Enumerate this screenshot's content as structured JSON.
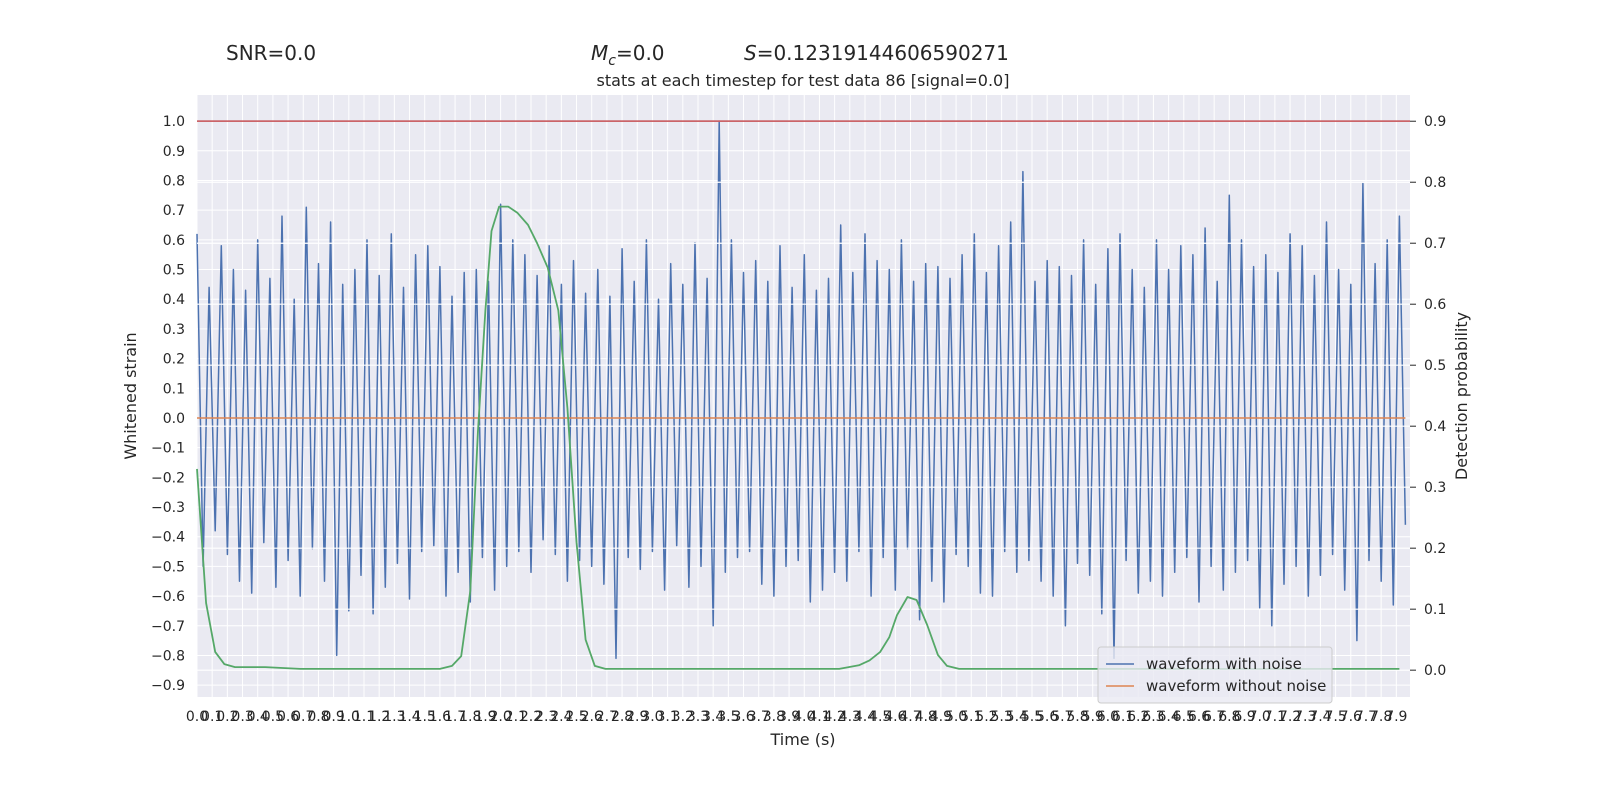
{
  "chart_data": {
    "type": "line",
    "annotations": {
      "snr": "SNR=0.0",
      "mc": {
        "symbol": "M",
        "sub": "c",
        "text": "=0.0"
      },
      "s": {
        "symbol": "S",
        "text": "=0.12319144606590271"
      }
    },
    "title": "stats at each timestep for test data 86 [signal=0.0]",
    "xlabel": "Time (s)",
    "ylabel": "Whitened strain",
    "y2label": "Detection probability",
    "xlim": [
      0,
      7.99
    ],
    "ylim": [
      -0.94,
      1.088
    ],
    "y2lim": [
      -0.044,
      0.943
    ],
    "grid": true,
    "legend": "lower right",
    "hline": {
      "value": 1.0,
      "color": "#c44e52"
    },
    "xticks": [
      {
        "value": 0,
        "label": "0.0"
      },
      0.1,
      0.2,
      0.3,
      0.4,
      0.5,
      0.6,
      0.7,
      0.8,
      0.9,
      {
        "value": 1,
        "label": "1.0"
      },
      1.1,
      1.2,
      1.3,
      1.4,
      1.5,
      1.6,
      1.7,
      1.8,
      1.9,
      {
        "value": 2,
        "label": "2.0"
      },
      2.1,
      2.2,
      2.3,
      2.4,
      2.5,
      2.6,
      2.7,
      2.8,
      2.9,
      {
        "value": 3,
        "label": "3.0"
      },
      3.1,
      3.2,
      3.3,
      3.4,
      3.5,
      3.6,
      3.7,
      3.8,
      3.9,
      {
        "value": 4,
        "label": "4.0"
      },
      4.1,
      4.2,
      4.3,
      4.4,
      4.5,
      4.6,
      4.7,
      4.8,
      4.9,
      {
        "value": 5,
        "label": "5.0"
      },
      5.1,
      5.2,
      5.3,
      5.4,
      5.5,
      5.6,
      5.7,
      5.8,
      5.9,
      {
        "value": 6,
        "label": "6.0"
      },
      6.1,
      6.2,
      6.3,
      6.4,
      6.5,
      6.6,
      6.7,
      6.8,
      6.9,
      {
        "value": 7,
        "label": "7.0"
      },
      7.1,
      7.2,
      7.3,
      7.4,
      7.5,
      7.6,
      7.7,
      7.8,
      7.9
    ],
    "yticks": [
      {
        "value": 1,
        "label": "1.0"
      },
      0.9,
      0.8,
      0.7,
      0.6,
      0.5,
      0.4,
      0.3,
      0.2,
      0.1,
      {
        "value": 0,
        "label": "0.0"
      },
      {
        "value": -0.1,
        "label": "−0.1"
      },
      {
        "value": -0.2,
        "label": "−0.2"
      },
      {
        "value": -0.3,
        "label": "−0.3"
      },
      {
        "value": -0.4,
        "label": "−0.4"
      },
      {
        "value": -0.5,
        "label": "−0.5"
      },
      {
        "value": -0.6,
        "label": "−0.6"
      },
      {
        "value": -0.7,
        "label": "−0.7"
      },
      {
        "value": -0.8,
        "label": "−0.8"
      },
      {
        "value": -0.9,
        "label": "−0.9"
      }
    ],
    "y2ticks": [
      0.9,
      0.8,
      0.7,
      0.6,
      0.5,
      0.4,
      0.3,
      0.2,
      0.1,
      {
        "value": 0,
        "label": "0.0"
      }
    ],
    "series": [
      {
        "name": "waveform with noise",
        "color": "#4c72b0",
        "x": [
          0,
          0.04,
          0.08,
          0.12,
          0.16,
          0.2,
          0.24,
          0.28,
          0.32,
          0.36,
          0.4,
          0.44,
          0.48,
          0.52,
          0.56,
          0.6,
          0.64,
          0.68,
          0.72,
          0.76,
          0.8,
          0.84,
          0.88,
          0.92,
          0.96,
          1,
          1.04,
          1.08,
          1.12,
          1.16,
          1.2,
          1.24,
          1.28,
          1.32,
          1.36,
          1.4,
          1.44,
          1.48,
          1.52,
          1.56,
          1.6,
          1.64,
          1.68,
          1.72,
          1.76,
          1.8,
          1.84,
          1.88,
          1.92,
          1.96,
          2,
          2.04,
          2.08,
          2.12,
          2.16,
          2.2,
          2.24,
          2.28,
          2.32,
          2.36,
          2.4,
          2.44,
          2.48,
          2.52,
          2.56,
          2.6,
          2.64,
          2.68,
          2.72,
          2.76,
          2.8,
          2.84,
          2.88,
          2.92,
          2.96,
          3,
          3.04,
          3.08,
          3.12,
          3.16,
          3.2,
          3.24,
          3.28,
          3.32,
          3.36,
          3.4,
          3.44,
          3.48,
          3.52,
          3.56,
          3.6,
          3.64,
          3.68,
          3.72,
          3.76,
          3.8,
          3.84,
          3.88,
          3.92,
          3.96,
          4,
          4.04,
          4.08,
          4.12,
          4.16,
          4.2,
          4.24,
          4.28,
          4.32,
          4.36,
          4.4,
          4.44,
          4.48,
          4.52,
          4.56,
          4.6,
          4.64,
          4.68,
          4.72,
          4.76,
          4.8,
          4.84,
          4.88,
          4.92,
          4.96,
          5,
          5.04,
          5.08,
          5.12,
          5.16,
          5.2,
          5.24,
          5.28,
          5.32,
          5.36,
          5.4,
          5.44,
          5.48,
          5.52,
          5.56,
          5.6,
          5.64,
          5.68,
          5.72,
          5.76,
          5.8,
          5.84,
          5.88,
          5.92,
          5.96,
          6,
          6.04,
          6.08,
          6.12,
          6.16,
          6.2,
          6.24,
          6.28,
          6.32,
          6.36,
          6.4,
          6.44,
          6.48,
          6.52,
          6.56,
          6.6,
          6.64,
          6.68,
          6.72,
          6.76,
          6.8,
          6.84,
          6.88,
          6.92,
          6.96,
          7,
          7.04,
          7.08,
          7.12,
          7.16,
          7.2,
          7.24,
          7.28,
          7.32,
          7.36,
          7.4,
          7.44,
          7.48,
          7.52,
          7.56,
          7.6,
          7.64,
          7.68,
          7.72,
          7.76,
          7.8,
          7.84,
          7.88,
          7.92,
          7.96
        ],
        "values": [
          0.62,
          -0.5,
          0.44,
          -0.38,
          0.58,
          -0.46,
          0.5,
          -0.55,
          0.43,
          -0.59,
          0.6,
          -0.42,
          0.47,
          -0.57,
          0.68,
          -0.48,
          0.4,
          -0.6,
          0.71,
          -0.44,
          0.52,
          -0.55,
          0.66,
          -0.8,
          0.45,
          -0.65,
          0.5,
          -0.53,
          0.6,
          -0.66,
          0.48,
          -0.57,
          0.62,
          -0.49,
          0.44,
          -0.61,
          0.55,
          -0.45,
          0.58,
          -0.43,
          0.51,
          -0.6,
          0.41,
          -0.52,
          0.49,
          -0.62,
          0.5,
          -0.47,
          0.46,
          -0.58,
          0.72,
          -0.5,
          0.6,
          -0.45,
          0.55,
          -0.52,
          0.48,
          -0.41,
          0.58,
          -0.46,
          0.45,
          -0.55,
          0.53,
          -0.48,
          0.42,
          -0.5,
          0.5,
          -0.56,
          0.41,
          -0.81,
          0.57,
          -0.47,
          0.46,
          -0.51,
          0.6,
          -0.45,
          0.4,
          -0.58,
          0.52,
          -0.43,
          0.45,
          -0.57,
          0.59,
          -0.5,
          0.47,
          -0.7,
          1.0,
          -0.52,
          0.6,
          -0.47,
          0.49,
          -0.45,
          0.53,
          -0.56,
          0.46,
          -0.6,
          0.58,
          -0.5,
          0.44,
          -0.48,
          0.55,
          -0.62,
          0.43,
          -0.58,
          0.47,
          -0.52,
          0.65,
          -0.55,
          0.49,
          -0.45,
          0.62,
          -0.6,
          0.53,
          -0.47,
          0.5,
          -0.58,
          0.6,
          -0.44,
          0.46,
          -0.68,
          0.52,
          -0.55,
          0.51,
          -0.62,
          0.47,
          -0.46,
          0.55,
          -0.5,
          0.62,
          -0.59,
          0.49,
          -0.6,
          0.58,
          -0.45,
          0.66,
          -0.52,
          0.83,
          -0.48,
          0.46,
          -0.55,
          0.53,
          -0.6,
          0.51,
          -0.7,
          0.48,
          -0.49,
          0.6,
          -0.53,
          0.45,
          -0.66,
          0.57,
          -0.81,
          0.62,
          -0.48,
          0.5,
          -0.59,
          0.44,
          -0.55,
          0.6,
          -0.6,
          0.5,
          -0.52,
          0.58,
          -0.47,
          0.55,
          -0.62,
          0.64,
          -0.5,
          0.46,
          -0.58,
          0.75,
          -0.52,
          0.6,
          -0.48,
          0.51,
          -0.64,
          0.55,
          -0.7,
          0.49,
          -0.56,
          0.62,
          -0.5,
          0.58,
          -0.6,
          0.48,
          -0.53,
          0.66,
          -0.46,
          0.5,
          -0.58,
          0.45,
          -0.75,
          0.79,
          -0.48,
          0.52,
          -0.55,
          0.6,
          -0.63,
          0.68,
          -0.36
        ]
      },
      {
        "name": "waveform without noise",
        "color": "#dd8452",
        "x": [
          0,
          7.96
        ],
        "values": [
          0,
          0
        ]
      },
      {
        "color": "#55a868",
        "axis": "y2",
        "x": [
          0,
          0.06,
          0.12,
          0.18,
          0.25,
          0.45,
          0.68,
          1.6,
          1.68,
          1.74,
          1.8,
          1.85,
          1.9,
          1.94,
          1.99,
          2.05,
          2.11,
          2.18,
          2.24,
          2.31,
          2.38,
          2.44,
          2.5,
          2.56,
          2.62,
          2.69,
          4.23,
          4.36,
          4.43,
          4.5,
          4.56,
          4.61,
          4.68,
          4.74,
          4.81,
          4.88,
          4.94,
          5.02,
          7.92
        ],
        "values": [
          0.33,
          0.11,
          0.03,
          0.01,
          0.005,
          0.005,
          0.002,
          0.002,
          0.007,
          0.023,
          0.13,
          0.39,
          0.59,
          0.72,
          0.76,
          0.76,
          0.75,
          0.73,
          0.7,
          0.66,
          0.59,
          0.43,
          0.21,
          0.05,
          0.007,
          0.002,
          0.002,
          0.008,
          0.016,
          0.03,
          0.054,
          0.09,
          0.12,
          0.115,
          0.074,
          0.025,
          0.007,
          0.002,
          0.002
        ]
      }
    ]
  }
}
